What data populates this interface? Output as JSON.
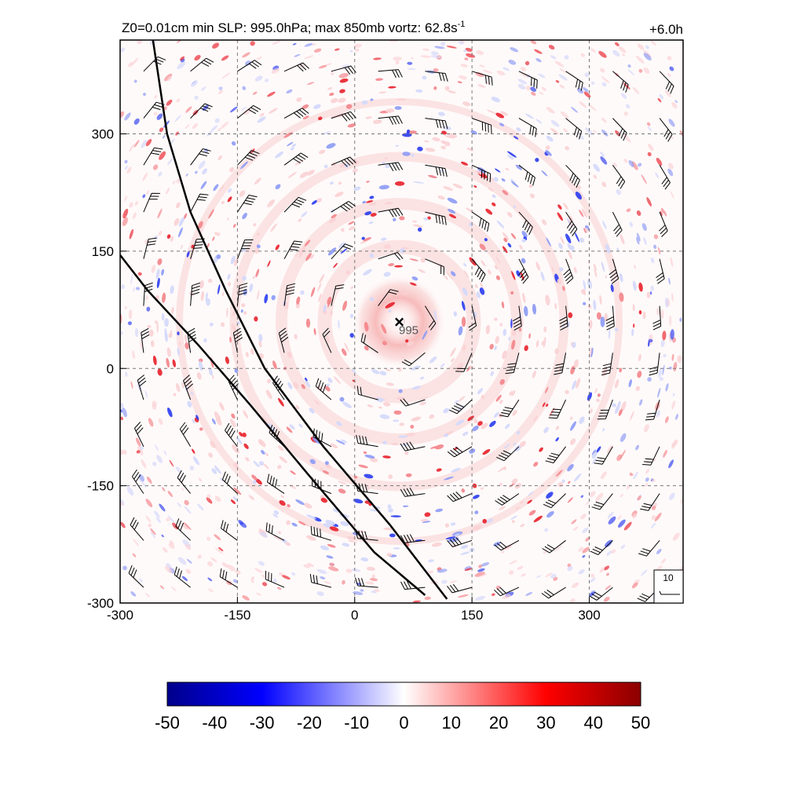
{
  "chart_data": {
    "type": "heatmap",
    "title_left": "Z0=0.01cm  min SLP: 995.0hPa; max 850mb vortz:  62.8s",
    "title_left_sup": "-1",
    "title_right": "+6.0h",
    "x_ticks": [
      -300,
      -150,
      0,
      150,
      300
    ],
    "y_ticks": [
      -300,
      -150,
      0,
      150,
      300
    ],
    "xlim": [
      -300,
      420
    ],
    "ylim": [
      -300,
      420
    ],
    "grid": true,
    "storm_center": {
      "x": 57,
      "y": 60,
      "marker": "×",
      "slp_label": "995"
    },
    "track_lines": [
      [
        [
          -258,
          420
        ],
        [
          -240,
          300
        ],
        [
          -210,
          200
        ],
        [
          -165,
          100
        ],
        [
          -115,
          0
        ],
        [
          -40,
          -100
        ],
        [
          45,
          -200
        ],
        [
          118,
          -295
        ]
      ],
      [
        [
          -300,
          145
        ],
        [
          -265,
          100
        ],
        [
          -200,
          30
        ],
        [
          -135,
          -45
        ],
        [
          -60,
          -135
        ],
        [
          25,
          -235
        ],
        [
          90,
          -290
        ]
      ]
    ],
    "wind_barb_reference": {
      "label": "10"
    },
    "colorbar": {
      "ticks": [
        -50,
        -40,
        -30,
        -20,
        -10,
        0,
        10,
        20,
        30,
        40,
        50
      ],
      "colors": [
        "#00008b",
        "#0000ff",
        "#ffffff",
        "#ff0000",
        "#8b0000"
      ]
    }
  }
}
